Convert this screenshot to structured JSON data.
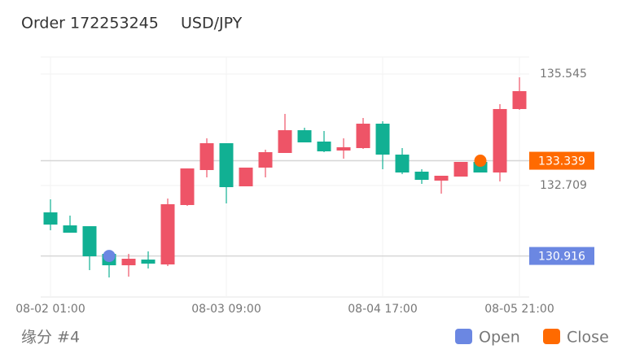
{
  "chart_data": {
    "type": "candlestick",
    "title": "Order 172253245",
    "subtitle": "USD/JPY",
    "footer": "缘分 #4",
    "categories": [
      "08-02 01:00",
      null,
      null,
      null,
      null,
      null,
      null,
      null,
      null,
      "08-03 09:00",
      null,
      null,
      null,
      null,
      null,
      null,
      null,
      "08-04 17:00",
      null,
      null,
      null,
      null,
      null,
      null,
      "08-05 21:00"
    ],
    "open": [
      132.025,
      131.694,
      131.673,
      130.969,
      130.679,
      130.824,
      130.7,
      132.212,
      133.102,
      133.785,
      132.688,
      133.164,
      133.537,
      134.116,
      133.827,
      133.599,
      133.661,
      134.282,
      133.495,
      133.061,
      132.833,
      132.936,
      133.309,
      133.04,
      134.655
    ],
    "close": [
      131.715,
      131.508,
      130.907,
      130.679,
      130.845,
      130.721,
      132.232,
      133.143,
      133.785,
      132.667,
      133.164,
      133.557,
      134.116,
      133.806,
      133.578,
      133.682,
      134.282,
      133.495,
      133.04,
      132.853,
      132.957,
      133.309,
      133.04,
      134.655,
      135.11
    ],
    "high": [
      132.357,
      131.943,
      131.673,
      131.011,
      130.969,
      131.032,
      132.377,
      133.143,
      133.909,
      133.785,
      133.164,
      133.62,
      134.531,
      134.179,
      134.096,
      133.909,
      134.427,
      134.344,
      133.661,
      133.123,
      132.957,
      133.309,
      133.371,
      134.779,
      135.462
    ],
    "low": [
      131.57,
      131.508,
      130.555,
      130.369,
      130.39,
      130.597,
      130.659,
      132.191,
      132.916,
      132.253,
      132.688,
      132.916,
      133.537,
      133.806,
      133.557,
      133.392,
      133.64,
      133.123,
      132.998,
      132.75,
      132.502,
      132.936,
      133.04,
      132.812,
      134.634
    ],
    "up_color": "#ee5467",
    "down_color": "#11b093",
    "markers": [
      {
        "name": "Open",
        "color": "#6b87e2",
        "candle": 3,
        "value": 130.916
      },
      {
        "name": "Close",
        "color": "#ff6a00",
        "candle": 22,
        "value": 133.339
      }
    ],
    "ylim": [
      129.872,
      135.98
    ],
    "yticks": [
      132.709,
      135.545
    ],
    "grid": true
  }
}
